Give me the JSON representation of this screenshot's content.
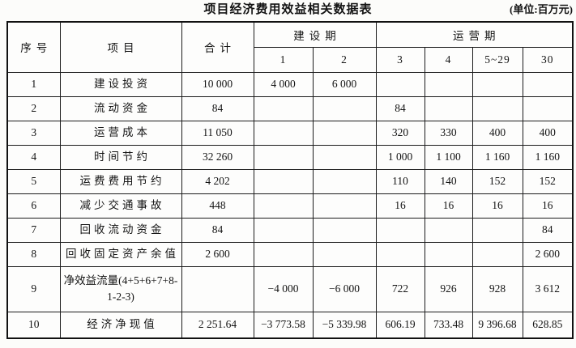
{
  "title": "项目经济费用效益相关数据表",
  "unit_note": "(单位:百万元)",
  "table": {
    "header": {
      "col_no": "序号",
      "col_item": "项目",
      "col_total": "合计",
      "construction_period": "建设期",
      "operation_period": "运营期",
      "year_cols": [
        "1",
        "2",
        "3",
        "4",
        "5~29",
        "30"
      ]
    },
    "rows": [
      {
        "no": "1",
        "item": "建设投资",
        "values": [
          "10 000",
          "4 000",
          "6 000",
          "",
          "",
          "",
          ""
        ]
      },
      {
        "no": "2",
        "item": "流动资金",
        "values": [
          "84",
          "",
          "",
          "84",
          "",
          "",
          ""
        ]
      },
      {
        "no": "3",
        "item": "运营成本",
        "values": [
          "11 050",
          "",
          "",
          "320",
          "330",
          "400",
          "400"
        ]
      },
      {
        "no": "4",
        "item": "时间节约",
        "values": [
          "32 260",
          "",
          "",
          "1 000",
          "1 100",
          "1 160",
          "1 160"
        ]
      },
      {
        "no": "5",
        "item": "运费费用节约",
        "values": [
          "4 202",
          "",
          "",
          "110",
          "140",
          "152",
          "152"
        ]
      },
      {
        "no": "6",
        "item": "减少交通事故",
        "values": [
          "448",
          "",
          "",
          "16",
          "16",
          "16",
          "16"
        ]
      },
      {
        "no": "7",
        "item": "回收流动资金",
        "values": [
          "84",
          "",
          "",
          "",
          "",
          "",
          "84"
        ]
      },
      {
        "no": "8",
        "item": "回收固定资产余值",
        "values": [
          "2 600",
          "",
          "",
          "",
          "",
          "",
          "2 600"
        ]
      },
      {
        "no": "9",
        "item": "净效益流量(4+5+6+7+8-1-2-3)",
        "values": [
          "",
          "−4 000",
          "−6 000",
          "722",
          "926",
          "928",
          "3 612"
        ]
      },
      {
        "no": "10",
        "item": "经济净现值",
        "values": [
          "2 251.64",
          "−3 773.58",
          "−5 339.98",
          "606.19",
          "733.48",
          "9 396.68",
          "628.85"
        ]
      }
    ]
  }
}
